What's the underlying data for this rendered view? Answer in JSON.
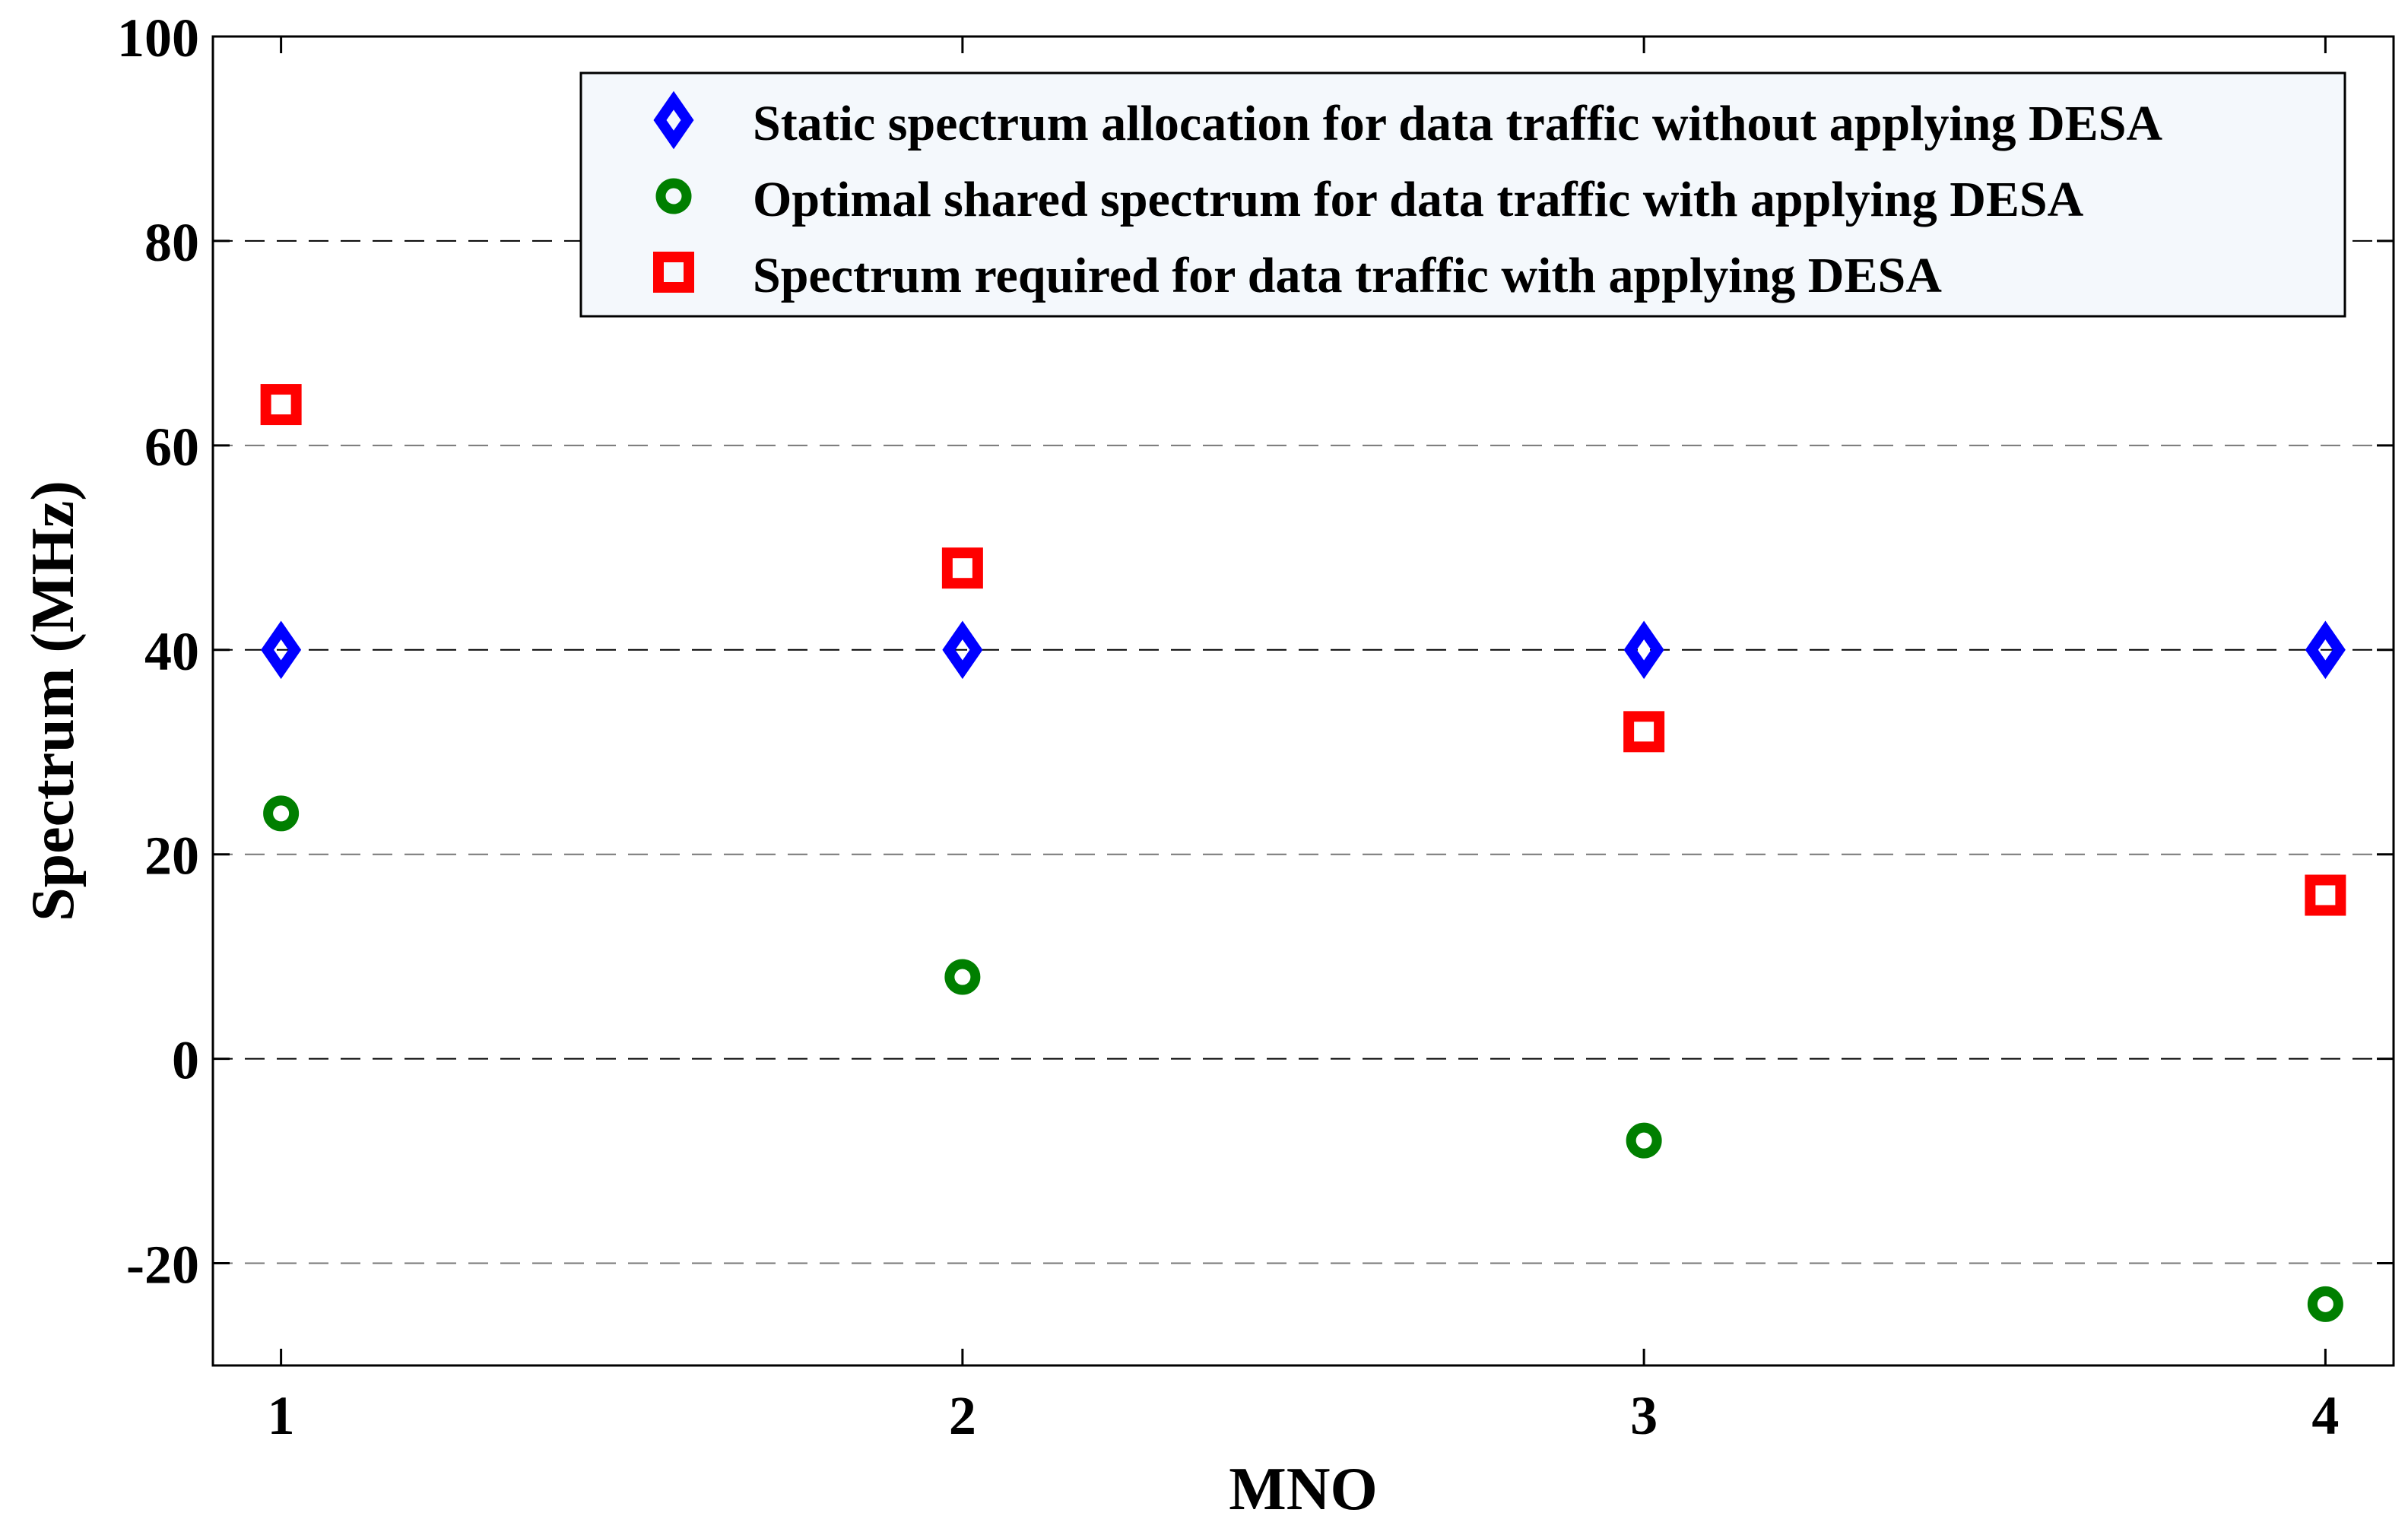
{
  "chart_data": {
    "type": "scatter",
    "title": "",
    "xlabel": "MNO",
    "ylabel": "Spectrum (MHz)",
    "xlim": [
      0.9,
      4.1
    ],
    "ylim": [
      -30,
      100
    ],
    "x_ticks": [
      1,
      2,
      3,
      4
    ],
    "y_ticks": [
      -20,
      0,
      20,
      40,
      60,
      80,
      100
    ],
    "grid": "horizontal dashed",
    "legend_position": "top-right",
    "series": [
      {
        "name": "Static spectrum allocation for data traffic without applying DESA",
        "marker": "diamond",
        "color": "#0000ff",
        "x": [
          1,
          2,
          3,
          4
        ],
        "values": [
          40,
          40,
          40,
          40
        ]
      },
      {
        "name": "Optimal shared spectrum for data traffic with applying DESA",
        "marker": "circle",
        "color": "#007f00",
        "x": [
          1,
          2,
          3,
          4
        ],
        "values": [
          24,
          8,
          -8,
          -24
        ]
      },
      {
        "name": "Spectrum required for data traffic with applying DESA",
        "marker": "square",
        "color": "#ff0000",
        "x": [
          1,
          2,
          3,
          4
        ],
        "values": [
          64,
          48,
          32,
          16
        ]
      }
    ]
  }
}
